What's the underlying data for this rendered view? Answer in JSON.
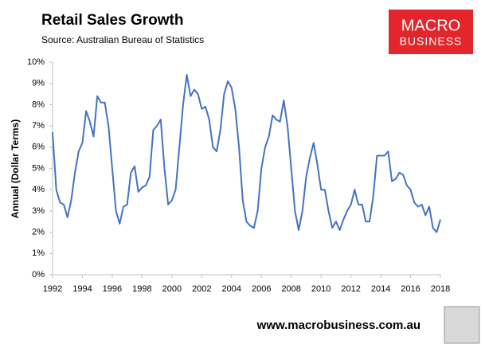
{
  "chart_data": {
    "type": "line",
    "title": "Retail Sales Growth",
    "subtitle": "Source: Australian Bureau of Statistics",
    "y_label": "Annual (Dollar Terms)",
    "x": [
      1992,
      1992.25,
      1992.5,
      1992.75,
      1993,
      1993.25,
      1993.5,
      1993.75,
      1994,
      1994.25,
      1994.5,
      1994.75,
      1995,
      1995.25,
      1995.5,
      1995.75,
      1996,
      1996.25,
      1996.5,
      1996.75,
      1997,
      1997.25,
      1997.5,
      1997.75,
      1998,
      1998.25,
      1998.5,
      1998.75,
      1999,
      1999.25,
      1999.5,
      1999.75,
      2000,
      2000.25,
      2000.5,
      2000.75,
      2001,
      2001.25,
      2001.5,
      2001.75,
      2002,
      2002.25,
      2002.5,
      2002.75,
      2003,
      2003.25,
      2003.5,
      2003.75,
      2004,
      2004.25,
      2004.5,
      2004.75,
      2005,
      2005.25,
      2005.5,
      2005.75,
      2006,
      2006.25,
      2006.5,
      2006.75,
      2007,
      2007.25,
      2007.5,
      2007.75,
      2008,
      2008.25,
      2008.5,
      2008.75,
      2009,
      2009.25,
      2009.5,
      2009.75,
      2010,
      2010.25,
      2010.5,
      2010.75,
      2011,
      2011.25,
      2011.5,
      2011.75,
      2012,
      2012.25,
      2012.5,
      2012.75,
      2013,
      2013.25,
      2013.5,
      2013.75,
      2014,
      2014.25,
      2014.5,
      2014.75,
      2015,
      2015.25,
      2015.5,
      2015.75,
      2016,
      2016.25,
      2016.5,
      2016.75,
      2017,
      2017.25,
      2017.5,
      2017.75,
      2018
    ],
    "series": [
      {
        "color": "#4472c4",
        "values": [
          6.7,
          4.0,
          3.4,
          3.3,
          2.7,
          3.5,
          4.8,
          5.8,
          6.2,
          7.7,
          7.2,
          6.5,
          8.4,
          8.1,
          8.1,
          7.0,
          5.0,
          3.0,
          2.4,
          3.2,
          3.3,
          4.8,
          5.1,
          3.9,
          4.1,
          4.2,
          4.6,
          6.8,
          7.0,
          7.3,
          5.0,
          3.3,
          3.5,
          4.0,
          6.0,
          8.0,
          9.4,
          8.4,
          8.7,
          8.5,
          7.8,
          7.9,
          7.3,
          6.0,
          5.8,
          6.8,
          8.5,
          9.1,
          8.8,
          7.8,
          6.0,
          3.5,
          2.5,
          2.3,
          2.2,
          3.0,
          5.0,
          6.0,
          6.5,
          7.5,
          7.3,
          7.2,
          8.2,
          7.0,
          5.0,
          3.0,
          2.1,
          3.0,
          4.6,
          5.5,
          6.2,
          5.2,
          4.0,
          4.0,
          3.0,
          2.2,
          2.5,
          2.1,
          2.6,
          3.0,
          3.3,
          4.0,
          3.3,
          3.3,
          2.5,
          2.5,
          3.7,
          5.6,
          5.6,
          5.6,
          5.8,
          4.4,
          4.5,
          4.8,
          4.7,
          4.2,
          4.0,
          3.4,
          3.2,
          3.3,
          2.8,
          3.2,
          2.2,
          2.0,
          2.6
        ]
      }
    ],
    "xlim": [
      1992,
      2018
    ],
    "xticks": [
      1992,
      1994,
      1996,
      1998,
      2000,
      2002,
      2004,
      2006,
      2008,
      2010,
      2012,
      2014,
      2016,
      2018
    ],
    "ylim": [
      0,
      10
    ],
    "yticks": [
      {
        "value": 0,
        "label": "0%"
      },
      {
        "value": 1,
        "label": "1%"
      },
      {
        "value": 2,
        "label": "2%"
      },
      {
        "value": 3,
        "label": "3%"
      },
      {
        "value": 4,
        "label": "4%"
      },
      {
        "value": 5,
        "label": "5%"
      },
      {
        "value": 6,
        "label": "6%"
      },
      {
        "value": 7,
        "label": "7%"
      },
      {
        "value": 8,
        "label": "8%"
      },
      {
        "value": 9,
        "label": "9%"
      },
      {
        "value": 10,
        "label": "10%"
      }
    ],
    "grid": false
  },
  "branding": {
    "logo_top": "MACRO",
    "logo_bottom": "BUSINESS",
    "url": "www.macrobusiness.com.au"
  }
}
